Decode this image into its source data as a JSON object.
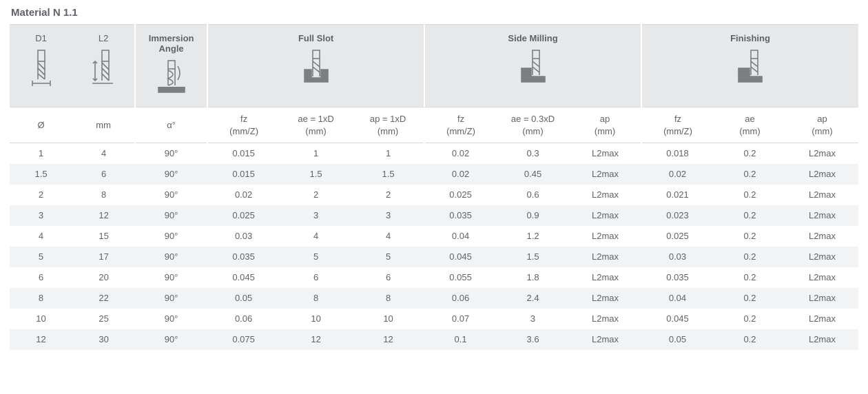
{
  "title": "Material N 1.1",
  "colors": {
    "text": "#5f6266",
    "header_bg": "#e7e8e9",
    "row_alt_bg": "#f2f3f4",
    "border": "#d7d8d9",
    "icon": "#7c7f82"
  },
  "header": {
    "d1": "D1",
    "l2": "L2",
    "immersion": "Immersion\nAngle",
    "full_slot": "Full Slot",
    "side_milling": "Side Milling",
    "finishing": "Finishing"
  },
  "subheader": {
    "d1": "Ø",
    "l2": "mm",
    "angle": "α°",
    "fs_fz": "fz\n(mm/Z)",
    "fs_ae": "ae = 1xD\n(mm)",
    "fs_ap": "ap = 1xD\n(mm)",
    "sm_fz": "fz\n(mm/Z)",
    "sm_ae": "ae = 0.3xD\n(mm)",
    "sm_ap": "ap\n(mm)",
    "fn_fz": "fz\n(mm/Z)",
    "fn_ae": "ae\n(mm)",
    "fn_ap": "ap\n(mm)"
  },
  "rows": [
    {
      "d1": "1",
      "l2": "4",
      "a": "90°",
      "fs_fz": "0.015",
      "fs_ae": "1",
      "fs_ap": "1",
      "sm_fz": "0.02",
      "sm_ae": "0.3",
      "sm_ap": "L2max",
      "fn_fz": "0.018",
      "fn_ae": "0.2",
      "fn_ap": "L2max"
    },
    {
      "d1": "1.5",
      "l2": "6",
      "a": "90°",
      "fs_fz": "0.015",
      "fs_ae": "1.5",
      "fs_ap": "1.5",
      "sm_fz": "0.02",
      "sm_ae": "0.45",
      "sm_ap": "L2max",
      "fn_fz": "0.02",
      "fn_ae": "0.2",
      "fn_ap": "L2max"
    },
    {
      "d1": "2",
      "l2": "8",
      "a": "90°",
      "fs_fz": "0.02",
      "fs_ae": "2",
      "fs_ap": "2",
      "sm_fz": "0.025",
      "sm_ae": "0.6",
      "sm_ap": "L2max",
      "fn_fz": "0.021",
      "fn_ae": "0.2",
      "fn_ap": "L2max"
    },
    {
      "d1": "3",
      "l2": "12",
      "a": "90°",
      "fs_fz": "0.025",
      "fs_ae": "3",
      "fs_ap": "3",
      "sm_fz": "0.035",
      "sm_ae": "0.9",
      "sm_ap": "L2max",
      "fn_fz": "0.023",
      "fn_ae": "0.2",
      "fn_ap": "L2max"
    },
    {
      "d1": "4",
      "l2": "15",
      "a": "90°",
      "fs_fz": "0.03",
      "fs_ae": "4",
      "fs_ap": "4",
      "sm_fz": "0.04",
      "sm_ae": "1.2",
      "sm_ap": "L2max",
      "fn_fz": "0.025",
      "fn_ae": "0.2",
      "fn_ap": "L2max"
    },
    {
      "d1": "5",
      "l2": "17",
      "a": "90°",
      "fs_fz": "0.035",
      "fs_ae": "5",
      "fs_ap": "5",
      "sm_fz": "0.045",
      "sm_ae": "1.5",
      "sm_ap": "L2max",
      "fn_fz": "0.03",
      "fn_ae": "0.2",
      "fn_ap": "L2max"
    },
    {
      "d1": "6",
      "l2": "20",
      "a": "90°",
      "fs_fz": "0.045",
      "fs_ae": "6",
      "fs_ap": "6",
      "sm_fz": "0.055",
      "sm_ae": "1.8",
      "sm_ap": "L2max",
      "fn_fz": "0.035",
      "fn_ae": "0.2",
      "fn_ap": "L2max"
    },
    {
      "d1": "8",
      "l2": "22",
      "a": "90°",
      "fs_fz": "0.05",
      "fs_ae": "8",
      "fs_ap": "8",
      "sm_fz": "0.06",
      "sm_ae": "2.4",
      "sm_ap": "L2max",
      "fn_fz": "0.04",
      "fn_ae": "0.2",
      "fn_ap": "L2max"
    },
    {
      "d1": "10",
      "l2": "25",
      "a": "90°",
      "fs_fz": "0.06",
      "fs_ae": "10",
      "fs_ap": "10",
      "sm_fz": "0.07",
      "sm_ae": "3",
      "sm_ap": "L2max",
      "fn_fz": "0.045",
      "fn_ae": "0.2",
      "fn_ap": "L2max"
    },
    {
      "d1": "12",
      "l2": "30",
      "a": "90°",
      "fs_fz": "0.075",
      "fs_ae": "12",
      "fs_ap": "12",
      "sm_fz": "0.1",
      "sm_ae": "3.6",
      "sm_ap": "L2max",
      "fn_fz": "0.05",
      "fn_ae": "0.2",
      "fn_ap": "L2max"
    }
  ]
}
